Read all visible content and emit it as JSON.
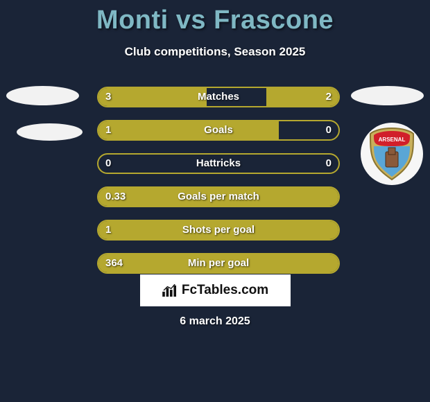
{
  "header": {
    "title": "Monti vs Frascone",
    "subtitle": "Club competitions, Season 2025"
  },
  "colors": {
    "background": "#1a2437",
    "title": "#7fb8c4",
    "bar_fill": "#b5a82f",
    "bar_border": "#b5a82f",
    "text": "#ffffff",
    "badge_bg": "#f2f2f2",
    "fctables_bg": "#ffffff",
    "fctables_text": "#111111"
  },
  "bars": [
    {
      "label": "Matches",
      "left": "3",
      "right": "2",
      "left_pct": 45,
      "right_pct": 30
    },
    {
      "label": "Goals",
      "left": "1",
      "right": "0",
      "left_pct": 75,
      "right_pct": 0
    },
    {
      "label": "Hattricks",
      "left": "0",
      "right": "0",
      "left_pct": 0,
      "right_pct": 0
    },
    {
      "label": "Goals per match",
      "left": "0.33",
      "right": "",
      "left_pct": 100,
      "right_pct": 0
    },
    {
      "label": "Shots per goal",
      "left": "1",
      "right": "",
      "left_pct": 100,
      "right_pct": 0
    },
    {
      "label": "Min per goal",
      "left": "364",
      "right": "",
      "left_pct": 100,
      "right_pct": 0
    }
  ],
  "branding": {
    "site": "FcTables.com"
  },
  "footer": {
    "date": "6 march 2025"
  },
  "crest": {
    "name": "Arsenal F.C.",
    "top_color": "#d11f2a",
    "bottom_color": "#5aa6d6",
    "edge_color": "#c9b05b"
  }
}
